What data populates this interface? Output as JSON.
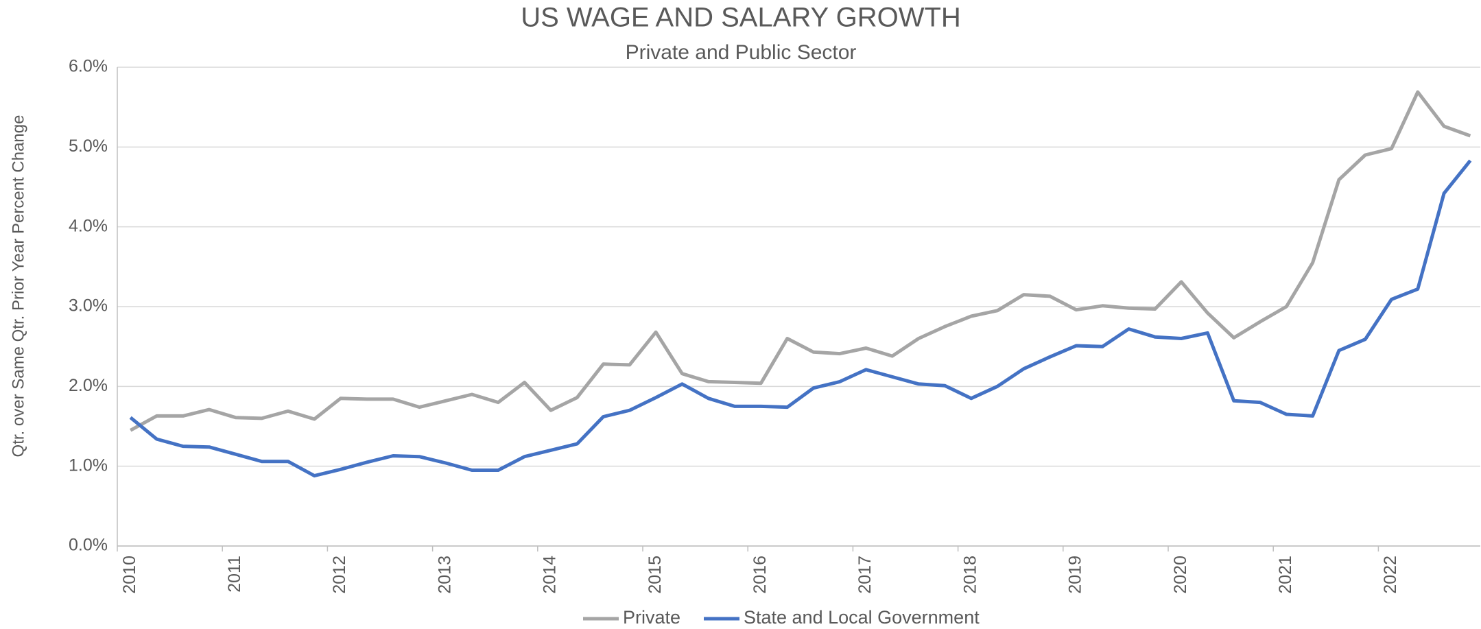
{
  "chart_data": {
    "type": "line",
    "title": "US WAGE AND SALARY GROWTH",
    "subtitle": "Private and Public Sector",
    "y_label": "Qtr. over Same Qtr. Prior Year Percent Change",
    "categories": [
      "2010",
      null,
      null,
      null,
      "2011",
      null,
      null,
      null,
      "2012",
      null,
      null,
      null,
      "2013",
      null,
      null,
      null,
      "2014",
      null,
      null,
      null,
      "2015",
      null,
      null,
      null,
      "2016",
      null,
      null,
      null,
      "2017",
      null,
      null,
      null,
      "2018",
      null,
      null,
      null,
      "2019",
      null,
      null,
      null,
      "2020",
      null,
      null,
      null,
      "2021",
      null,
      null,
      null,
      "2022",
      null,
      null,
      null
    ],
    "series": [
      {
        "name": "Private",
        "color": "#a5a5a5",
        "values": [
          1.45,
          1.63,
          1.63,
          1.71,
          1.61,
          1.6,
          1.69,
          1.59,
          1.85,
          1.84,
          1.84,
          1.74,
          1.82,
          1.9,
          1.8,
          2.05,
          1.7,
          1.86,
          2.28,
          2.27,
          2.68,
          2.16,
          2.06,
          2.05,
          2.04,
          2.6,
          2.43,
          2.41,
          2.48,
          2.38,
          2.6,
          2.75,
          2.88,
          2.95,
          3.15,
          3.13,
          2.96,
          3.01,
          2.98,
          2.97,
          3.31,
          2.92,
          2.61,
          2.81,
          3.0,
          3.55,
          4.59,
          4.9,
          4.98,
          5.69,
          5.26,
          5.14
        ]
      },
      {
        "name": "State and Local Government",
        "color": "#4472c4",
        "values": [
          1.61,
          1.34,
          1.25,
          1.24,
          1.15,
          1.06,
          1.06,
          0.88,
          0.96,
          1.05,
          1.13,
          1.12,
          1.04,
          0.95,
          0.95,
          1.12,
          1.2,
          1.28,
          1.62,
          1.7,
          1.86,
          2.03,
          1.85,
          1.75,
          1.75,
          1.74,
          1.98,
          2.06,
          2.21,
          2.12,
          2.03,
          2.01,
          1.85,
          2.0,
          2.22,
          2.37,
          2.51,
          2.5,
          2.72,
          2.62,
          2.6,
          2.67,
          1.82,
          1.8,
          1.65,
          1.63,
          2.45,
          2.59,
          3.09,
          3.22,
          4.42,
          4.83
        ]
      }
    ],
    "ylim": [
      0,
      6
    ],
    "yticks": [
      {
        "value": 0,
        "label": "0.0%"
      },
      {
        "value": 1,
        "label": "1.0%"
      },
      {
        "value": 2,
        "label": "2.0%"
      },
      {
        "value": 3,
        "label": "3.0%"
      },
      {
        "value": 4,
        "label": "4.0%"
      },
      {
        "value": 5,
        "label": "5.0%"
      },
      {
        "value": 6,
        "label": "6.0%"
      }
    ],
    "grid": true,
    "legend": "bottom"
  }
}
